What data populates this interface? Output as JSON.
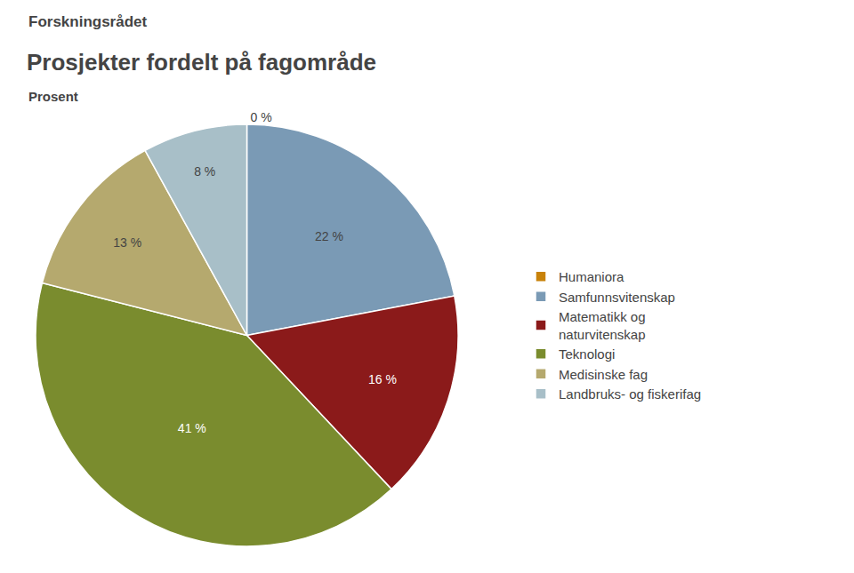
{
  "chart_data": {
    "type": "pie",
    "title": "Prosjekter fordelt på fagområde",
    "subtitle": "Prosent",
    "annotations": [
      {
        "text": "Forskningsrådet"
      }
    ],
    "categories": [
      "Humaniora",
      "Samfunnsvitenskap",
      "Matematikk og\nnaturvitenskap",
      "Teknologi",
      "Medisinske fag",
      "Landbruks- og fiskerifag"
    ],
    "values": [
      0.001,
      22,
      16,
      41,
      13,
      8
    ],
    "value_labels": [
      "0 %",
      "22 %",
      "16 %",
      "41 %",
      "13 %",
      "8 %"
    ],
    "colors": [
      "#c8820a",
      "#7a9ab5",
      "#8b1a1a",
      "#7a8c2e",
      "#b5a96e",
      "#a8bfc8"
    ],
    "data_labels": true,
    "legend": "right"
  }
}
